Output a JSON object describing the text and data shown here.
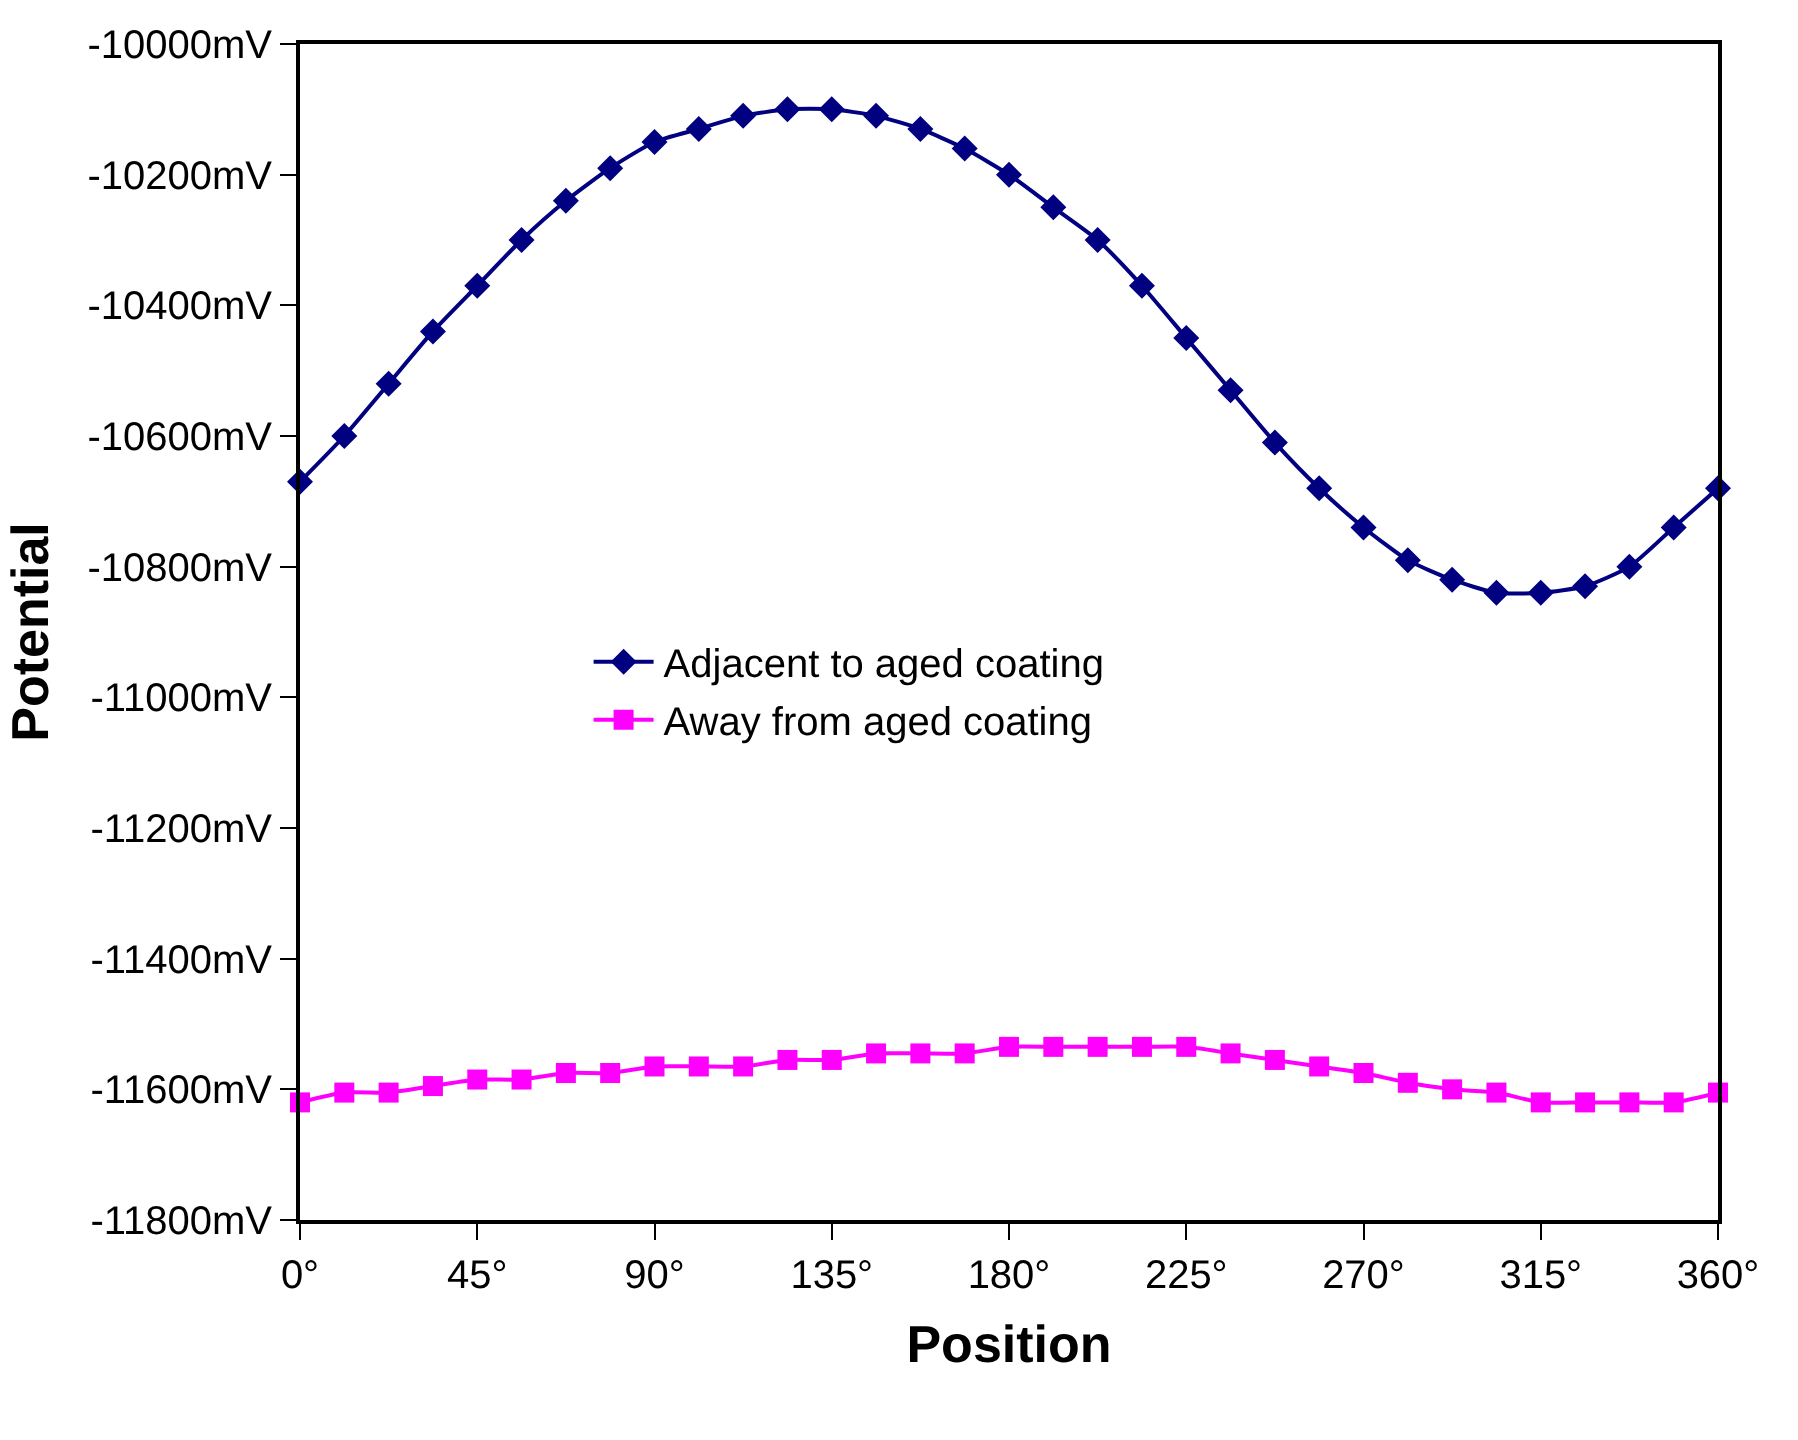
{
  "chart_data": {
    "type": "line",
    "xlabel": "Position",
    "ylabel": "Potential",
    "x": [
      0,
      11.25,
      22.5,
      33.75,
      45,
      56.25,
      67.5,
      78.75,
      90,
      101.25,
      112.5,
      123.75,
      135,
      146.25,
      157.5,
      168.75,
      180,
      191.25,
      202.5,
      213.75,
      225,
      236.25,
      247.5,
      258.75,
      270,
      281.25,
      292.5,
      303.75,
      315,
      326.25,
      337.5,
      348.75,
      360
    ],
    "series": [
      {
        "name": "Adjacent to aged coating",
        "color": "#000080",
        "marker": "diamond",
        "values": [
          -10670,
          -10600,
          -10520,
          -10440,
          -10370,
          -10300,
          -10240,
          -10190,
          -10150,
          -10130,
          -10110,
          -10100,
          -10100,
          -10110,
          -10130,
          -10160,
          -10200,
          -10250,
          -10300,
          -10370,
          -10450,
          -10530,
          -10610,
          -10680,
          -10740,
          -10790,
          -10820,
          -10840,
          -10840,
          -10830,
          -10800,
          -10740,
          -10680
        ]
      },
      {
        "name": "Away from aged coating",
        "color": "#ff00ff",
        "marker": "square",
        "values": [
          -11620,
          -11605,
          -11605,
          -11595,
          -11585,
          -11585,
          -11575,
          -11575,
          -11565,
          -11565,
          -11565,
          -11555,
          -11555,
          -11545,
          -11545,
          -11545,
          -11535,
          -11535,
          -11535,
          -11535,
          -11535,
          -11545,
          -11555,
          -11565,
          -11575,
          -11590,
          -11600,
          -11605,
          -11620,
          -11620,
          -11620,
          -11620,
          -11605
        ]
      }
    ],
    "xlim": [
      0,
      360
    ],
    "xticks": [
      {
        "value": 0,
        "label": "0°"
      },
      {
        "value": 45,
        "label": "45°"
      },
      {
        "value": 90,
        "label": "90°"
      },
      {
        "value": 135,
        "label": "135°"
      },
      {
        "value": 180,
        "label": "180°"
      },
      {
        "value": 225,
        "label": "225°"
      },
      {
        "value": 270,
        "label": "270°"
      },
      {
        "value": 315,
        "label": "315°"
      },
      {
        "value": 360,
        "label": "360°"
      }
    ],
    "ylim": [
      -11800,
      -10000
    ],
    "yticks": [
      {
        "value": -11800,
        "label": "-11800mV"
      },
      {
        "value": -11600,
        "label": "-11600mV"
      },
      {
        "value": -11400,
        "label": "-11400mV"
      },
      {
        "value": -11200,
        "label": "-11200mV"
      },
      {
        "value": -11000,
        "label": "-11000mV"
      },
      {
        "value": -10800,
        "label": "-10800mV"
      },
      {
        "value": -10600,
        "label": "-10600mV"
      },
      {
        "value": -10400,
        "label": "-10400mV"
      },
      {
        "value": -10200,
        "label": "-10200mV"
      },
      {
        "value": -10000,
        "label": "-10000mV"
      }
    ],
    "legend": "center left",
    "line_style": "solid"
  }
}
